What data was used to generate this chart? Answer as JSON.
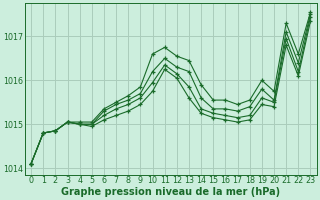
{
  "title": "Graphe pression niveau de la mer (hPa)",
  "bg_color": "#cceedd",
  "grid_color": "#aaccbb",
  "line_color": "#1a6b2a",
  "x_values": [
    0,
    1,
    2,
    3,
    4,
    5,
    6,
    7,
    8,
    9,
    10,
    11,
    12,
    13,
    14,
    15,
    16,
    17,
    18,
    19,
    20,
    21,
    22,
    23
  ],
  "series": [
    [
      1014.1,
      1014.8,
      1014.85,
      1015.05,
      1015.0,
      1015.0,
      1015.3,
      1015.45,
      1015.55,
      1015.7,
      1016.2,
      1016.5,
      1016.3,
      1016.2,
      1015.6,
      1015.35,
      1015.35,
      1015.3,
      1015.4,
      1015.8,
      1015.55,
      1017.1,
      1016.4,
      1017.5
    ],
    [
      1014.1,
      1014.8,
      1014.85,
      1015.05,
      1015.05,
      1015.05,
      1015.35,
      1015.5,
      1015.65,
      1015.85,
      1016.6,
      1016.75,
      1016.55,
      1016.45,
      1015.9,
      1015.55,
      1015.55,
      1015.45,
      1015.55,
      1016.0,
      1015.75,
      1017.3,
      1016.6,
      1017.55
    ],
    [
      1014.1,
      1014.8,
      1014.85,
      1015.05,
      1015.0,
      1015.0,
      1015.2,
      1015.35,
      1015.45,
      1015.6,
      1015.95,
      1016.35,
      1016.15,
      1015.85,
      1015.35,
      1015.25,
      1015.2,
      1015.15,
      1015.2,
      1015.6,
      1015.5,
      1016.95,
      1016.2,
      1017.45
    ],
    [
      1014.1,
      1014.8,
      1014.85,
      1015.05,
      1015.0,
      1014.95,
      1015.1,
      1015.2,
      1015.3,
      1015.45,
      1015.75,
      1016.25,
      1016.05,
      1015.6,
      1015.25,
      1015.15,
      1015.1,
      1015.05,
      1015.1,
      1015.45,
      1015.4,
      1016.8,
      1016.1,
      1017.35
    ]
  ],
  "ylim": [
    1013.85,
    1017.75
  ],
  "yticks": [
    1014,
    1015,
    1016,
    1017
  ],
  "xlim": [
    -0.5,
    23.5
  ],
  "xticks": [
    0,
    1,
    2,
    3,
    4,
    5,
    6,
    7,
    8,
    9,
    10,
    11,
    12,
    13,
    14,
    15,
    16,
    17,
    18,
    19,
    20,
    21,
    22,
    23
  ],
  "title_fontsize": 7.0,
  "tick_fontsize": 5.8
}
